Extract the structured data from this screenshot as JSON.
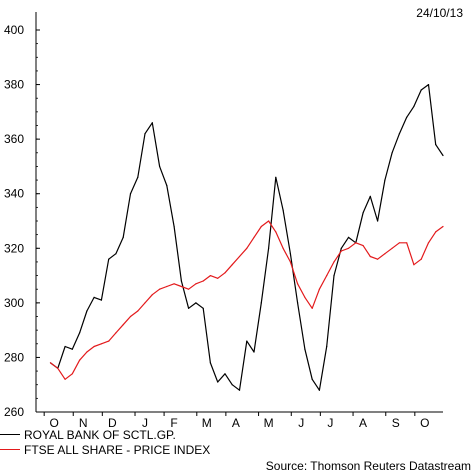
{
  "date_label": "24/10/13",
  "source": "Source: Thomson Reuters Datastream",
  "chart_data": {
    "type": "line",
    "title": "",
    "xlabel": "",
    "ylabel": "",
    "ylim": [
      260,
      400
    ],
    "yticks": [
      260,
      280,
      300,
      320,
      340,
      360,
      380,
      400
    ],
    "x_ticks": [
      "O",
      "N",
      "D",
      "J",
      "F",
      "M",
      "A",
      "M",
      "J",
      "J",
      "A",
      "S",
      "O"
    ],
    "x_tick_index_positions": [
      0.5,
      4.5,
      8.5,
      13,
      17,
      21.5,
      25.5,
      30,
      34.5,
      38.5,
      43,
      47.5,
      51.5
    ],
    "x_range": [
      -2,
      54
    ],
    "grid": false,
    "legend_position": "bottom-left",
    "series": [
      {
        "name": "ROYAL BANK OF SCTL.GP.",
        "color": "#000000",
        "values": [
          278,
          276,
          284,
          283,
          289,
          297,
          302,
          301,
          316,
          318,
          324,
          340,
          346,
          362,
          366,
          350,
          343,
          328,
          308,
          298,
          300,
          298,
          278,
          271,
          274,
          270,
          268,
          286,
          282,
          300,
          320,
          346,
          334,
          318,
          300,
          283,
          272,
          268,
          284,
          310,
          320,
          324,
          322,
          333,
          339,
          330,
          345,
          355,
          362,
          368,
          372,
          378,
          380,
          358,
          354
        ]
      },
      {
        "name": "FTSE ALL SHARE - PRICE INDEX",
        "color": "#e31a1c",
        "values": [
          278,
          276,
          272,
          274,
          279,
          282,
          284,
          285,
          286,
          289,
          292,
          295,
          297,
          300,
          303,
          305,
          306,
          307,
          306,
          305,
          307,
          308,
          310,
          309,
          311,
          314,
          317,
          320,
          324,
          328,
          330,
          326,
          320,
          315,
          307,
          302,
          298,
          305,
          310,
          315,
          319,
          320,
          322,
          321,
          317,
          316,
          318,
          320,
          322,
          322,
          314,
          316,
          322,
          326,
          328
        ]
      }
    ]
  }
}
